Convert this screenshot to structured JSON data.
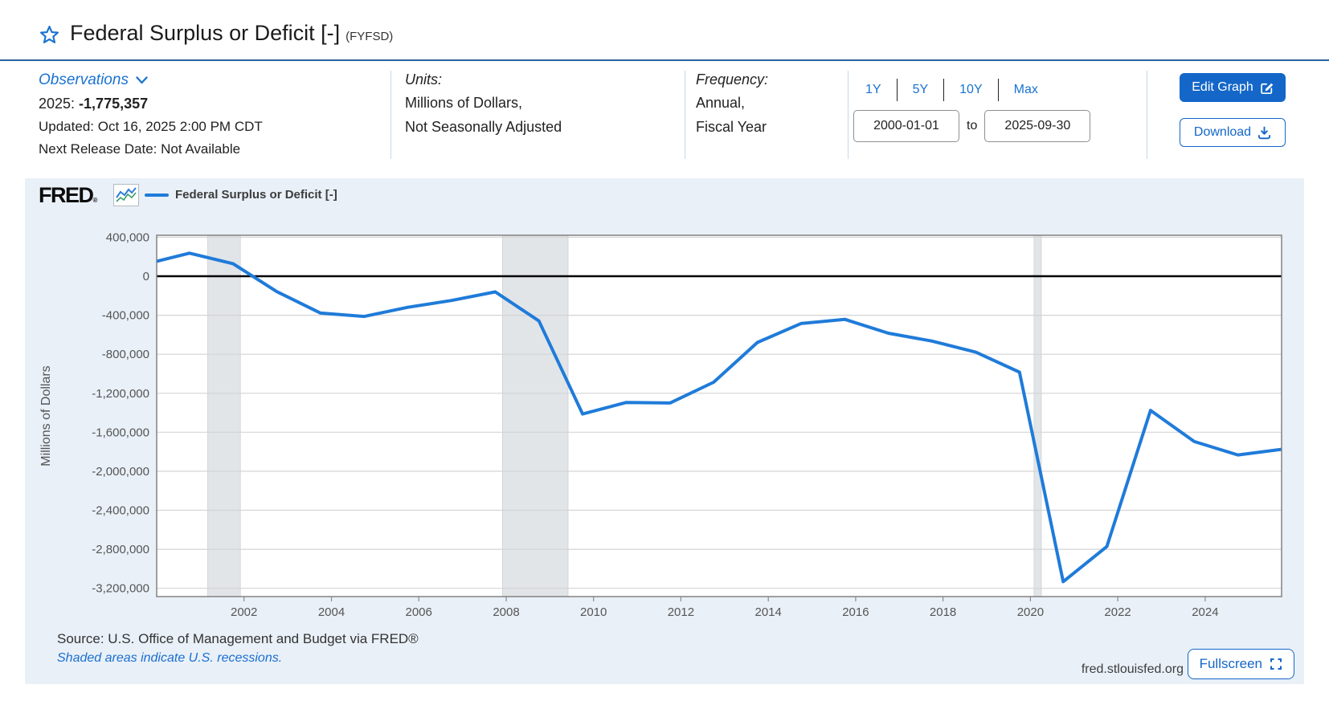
{
  "theme": {
    "accent": "#1467c8",
    "link_blue": "#1a73d0",
    "line_blue": "#1f7bd9",
    "card_bg": "#e9f0f8",
    "recession_band": "#e1e5e8",
    "grid": "#d4d4d4",
    "zero_line": "#000000",
    "plot_border": "#7a7a7a"
  },
  "header": {
    "title": "Federal Surplus or Deficit [-]",
    "series_id": "(FYFSD)"
  },
  "meta": {
    "observations": {
      "label": "Observations",
      "latest_period": "2025: ",
      "latest_value": "-1,775,357",
      "updated": "Updated: Oct 16, 2025 2:00 PM CDT",
      "next_release": "Next Release Date: Not Available"
    },
    "units": {
      "label": "Units:",
      "line1": "Millions of Dollars,",
      "line2": "Not Seasonally Adjusted"
    },
    "frequency": {
      "label": "Frequency:",
      "line1": "Annual,",
      "line2": "Fiscal Year"
    },
    "range": {
      "presets": [
        "1Y",
        "5Y",
        "10Y",
        "Max"
      ],
      "start_date": "2000-01-01",
      "to_label": "to",
      "end_date": "2025-09-30"
    },
    "actions": {
      "edit_graph": "Edit Graph",
      "download": "Download"
    }
  },
  "chart": {
    "logo_text": "FRED",
    "logo_reg": "®",
    "legend_label": "Federal Surplus or Deficit [-]",
    "source": "Source: U.S. Office of Management and Budget via FRED®",
    "recession_note": "Shaded areas indicate U.S. recessions.",
    "site": "fred.stlouisfed.org",
    "fullscreen_label": "Fullscreen"
  },
  "chart_data": {
    "type": "line",
    "title": "Federal Surplus or Deficit [-]",
    "ylabel": "Millions of Dollars",
    "units": "Millions of Dollars",
    "x_start": 2000.0,
    "x_end": 2025.75,
    "ylim": [
      -3285000,
      420000
    ],
    "yticks": [
      400000,
      0,
      -400000,
      -800000,
      -1200000,
      -1600000,
      -2000000,
      -2400000,
      -2800000,
      -3200000
    ],
    "xticks": [
      2002,
      2004,
      2006,
      2008,
      2010,
      2012,
      2014,
      2016,
      2018,
      2020,
      2022,
      2024
    ],
    "grid": "horizontal-only",
    "zero_line": true,
    "legend_position": "top-left",
    "point_position_note": "annual fiscal-year observations plotted at fiscal year end (year + 0.75)",
    "x_plot_offset": 0.75,
    "prior_point": {
      "fiscal_year": 1999,
      "value": 125610
    },
    "series": [
      {
        "name": "Federal Surplus or Deficit [-]",
        "color": "#1f7bd9",
        "fiscal_years": [
          2000,
          2001,
          2002,
          2003,
          2004,
          2005,
          2006,
          2007,
          2008,
          2009,
          2010,
          2011,
          2012,
          2013,
          2014,
          2015,
          2016,
          2017,
          2018,
          2019,
          2020,
          2021,
          2022,
          2023,
          2024,
          2025
        ],
        "values": [
          236241,
          128236,
          -157758,
          -377585,
          -412727,
          -318346,
          -248181,
          -160701,
          -458553,
          -1412688,
          -1294089,
          -1299599,
          -1086963,
          -679545,
          -484602,
          -441960,
          -584651,
          -665446,
          -779003,
          -984155,
          -3131917,
          -2772178,
          -1375389,
          -1695224,
          -1832816,
          -1775357
        ]
      }
    ],
    "recessions": [
      [
        2001.167,
        2001.917
      ],
      [
        2007.917,
        2009.417
      ],
      [
        2020.083,
        2020.25
      ]
    ]
  }
}
